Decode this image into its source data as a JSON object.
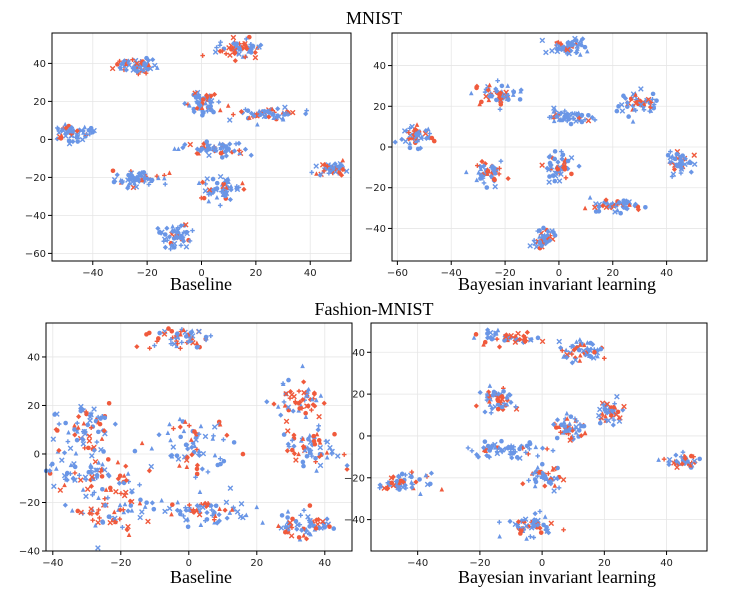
{
  "figure": {
    "sections": [
      {
        "title": "MNIST"
      },
      {
        "title": "Fashion-MNIST"
      }
    ]
  },
  "colors": {
    "class_a": "#6a96e6",
    "class_b": "#f05a3c"
  },
  "chart_data": [
    {
      "type": "scatter",
      "section": "MNIST",
      "title": "Baseline",
      "xlim": [
        -55,
        55
      ],
      "ylim": [
        -64,
        56
      ],
      "xticks": [
        -40,
        -20,
        0,
        20,
        40
      ],
      "yticks": [
        -60,
        -40,
        -20,
        0,
        20,
        40
      ],
      "grid": true,
      "clusters": [
        {
          "x": -47,
          "y": 3,
          "sx": 5,
          "sy": 2,
          "n": 60,
          "red": 0.15
        },
        {
          "x": -24,
          "y": 39,
          "sx": 4,
          "sy": 2,
          "n": 60,
          "red": 0.4
        },
        {
          "x": -22,
          "y": -21,
          "sx": 5,
          "sy": 2,
          "n": 55,
          "red": 0.2
        },
        {
          "x": 14,
          "y": 48,
          "sx": 4,
          "sy": 2.5,
          "n": 60,
          "red": 0.5
        },
        {
          "x": 0,
          "y": 19,
          "sx": 3,
          "sy": 3,
          "n": 55,
          "red": 0.3
        },
        {
          "x": 24,
          "y": 14,
          "sx": 6,
          "sy": 1.5,
          "n": 60,
          "red": 0.3
        },
        {
          "x": 4,
          "y": -5,
          "sx": 6,
          "sy": 2,
          "n": 60,
          "red": 0.25
        },
        {
          "x": 7,
          "y": -26,
          "sx": 5,
          "sy": 3,
          "n": 55,
          "red": 0.35
        },
        {
          "x": 48,
          "y": -15,
          "sx": 3,
          "sy": 2,
          "n": 50,
          "red": 0.3
        },
        {
          "x": -10,
          "y": -51,
          "sx": 3,
          "sy": 3,
          "n": 55,
          "red": 0.15
        }
      ]
    },
    {
      "type": "scatter",
      "section": "MNIST",
      "title": "Bayesian invariant learning",
      "xlim": [
        -62,
        55
      ],
      "ylim": [
        -56,
        56
      ],
      "xticks": [
        -60,
        -40,
        -20,
        0,
        20,
        40
      ],
      "yticks": [
        -40,
        -20,
        0,
        20,
        40
      ],
      "grid": true,
      "clusters": [
        {
          "x": 3,
          "y": 49,
          "sx": 3.5,
          "sy": 2,
          "n": 55,
          "red": 0.2
        },
        {
          "x": -23,
          "y": 26,
          "sx": 4,
          "sy": 2.5,
          "n": 55,
          "red": 0.3
        },
        {
          "x": 30,
          "y": 22,
          "sx": 3,
          "sy": 2.5,
          "n": 55,
          "red": 0.3
        },
        {
          "x": -52,
          "y": 5,
          "sx": 3,
          "sy": 2.5,
          "n": 50,
          "red": 0.3
        },
        {
          "x": 3,
          "y": 15,
          "sx": 4,
          "sy": 1.5,
          "n": 55,
          "red": 0.2
        },
        {
          "x": -27,
          "y": -12,
          "sx": 3,
          "sy": 3,
          "n": 50,
          "red": 0.25
        },
        {
          "x": 0,
          "y": -10,
          "sx": 3,
          "sy": 3,
          "n": 55,
          "red": 0.25
        },
        {
          "x": 45,
          "y": -7,
          "sx": 2.5,
          "sy": 2.5,
          "n": 45,
          "red": 0.25
        },
        {
          "x": 19,
          "y": -29,
          "sx": 5,
          "sy": 1.5,
          "n": 55,
          "red": 0.15
        },
        {
          "x": -6,
          "y": -45,
          "sx": 2.5,
          "sy": 2.5,
          "n": 45,
          "red": 0.2
        }
      ]
    },
    {
      "type": "scatter",
      "section": "Fashion-MNIST",
      "title": "Baseline",
      "xlim": [
        -42,
        48
      ],
      "ylim": [
        -40,
        54
      ],
      "xticks": [
        -40,
        -20,
        0,
        20,
        40
      ],
      "yticks": [
        -40,
        -20,
        0,
        20,
        40
      ],
      "grid": true,
      "clusters": [
        {
          "x": -2,
          "y": 48,
          "sx": 4,
          "sy": 2.5,
          "n": 55,
          "red": 0.5
        },
        {
          "x": -30,
          "y": 12,
          "sx": 5,
          "sy": 5,
          "n": 65,
          "red": 0.35
        },
        {
          "x": -30,
          "y": -7,
          "sx": 7,
          "sy": 6,
          "n": 75,
          "red": 0.25
        },
        {
          "x": -22,
          "y": -22,
          "sx": 6,
          "sy": 6,
          "n": 70,
          "red": 0.4
        },
        {
          "x": 1,
          "y": 3,
          "sx": 6,
          "sy": 5,
          "n": 70,
          "red": 0.3
        },
        {
          "x": 5,
          "y": -24,
          "sx": 6,
          "sy": 3,
          "n": 70,
          "red": 0.4
        },
        {
          "x": 32,
          "y": 22,
          "sx": 4,
          "sy": 4,
          "n": 55,
          "red": 0.55
        },
        {
          "x": 37,
          "y": 2,
          "sx": 4,
          "sy": 4,
          "n": 65,
          "red": 0.35
        },
        {
          "x": 34,
          "y": -29,
          "sx": 4,
          "sy": 3,
          "n": 60,
          "red": 0.3
        }
      ]
    },
    {
      "type": "scatter",
      "section": "Fashion-MNIST",
      "title": "Bayesian invariant learning",
      "xlim": [
        -55,
        53
      ],
      "ylim": [
        -55,
        54
      ],
      "xticks": [
        -40,
        -20,
        0,
        20,
        40
      ],
      "yticks": [
        -40,
        -20,
        0,
        20,
        40
      ],
      "grid": true,
      "clusters": [
        {
          "x": -12,
          "y": 47,
          "sx": 5,
          "sy": 1.5,
          "n": 50,
          "red": 0.4
        },
        {
          "x": 13,
          "y": 41,
          "sx": 4,
          "sy": 2.5,
          "n": 55,
          "red": 0.4
        },
        {
          "x": -14,
          "y": 17,
          "sx": 2.5,
          "sy": 3,
          "n": 50,
          "red": 0.4
        },
        {
          "x": 22,
          "y": 12,
          "sx": 2.5,
          "sy": 2.5,
          "n": 45,
          "red": 0.4
        },
        {
          "x": 9,
          "y": 3,
          "sx": 3,
          "sy": 3,
          "n": 50,
          "red": 0.3
        },
        {
          "x": -12,
          "y": -7,
          "sx": 6,
          "sy": 2,
          "n": 60,
          "red": 0.2
        },
        {
          "x": 2,
          "y": -20,
          "sx": 3,
          "sy": 2.5,
          "n": 45,
          "red": 0.3
        },
        {
          "x": -45,
          "y": -22,
          "sx": 4,
          "sy": 2,
          "n": 55,
          "red": 0.3
        },
        {
          "x": -4,
          "y": -43,
          "sx": 4,
          "sy": 2.5,
          "n": 55,
          "red": 0.35
        },
        {
          "x": 45,
          "y": -12,
          "sx": 2.5,
          "sy": 2,
          "n": 40,
          "red": 0.4
        }
      ]
    }
  ]
}
